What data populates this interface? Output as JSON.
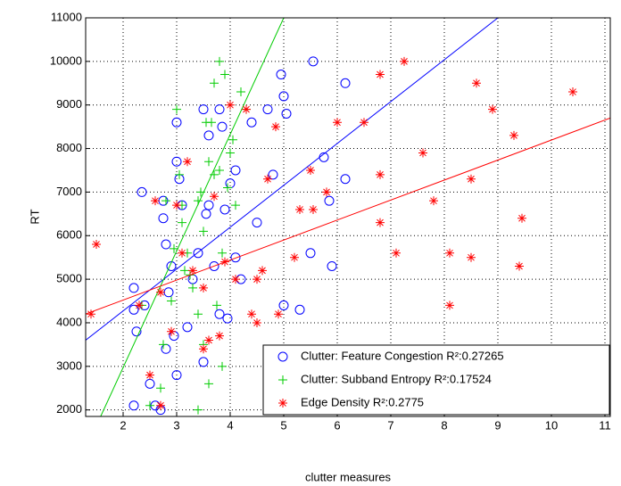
{
  "chart_data": {
    "type": "scatter",
    "xlabel": "clutter measures",
    "ylabel": "RT",
    "xlim": [
      1.3,
      11.1
    ],
    "ylim": [
      1850,
      11000
    ],
    "xticks": [
      2,
      3,
      4,
      5,
      6,
      7,
      8,
      9,
      10,
      11
    ],
    "yticks": [
      2000,
      3000,
      4000,
      5000,
      6000,
      7000,
      8000,
      9000,
      10000,
      11000
    ],
    "grid": true,
    "legend": "lower right",
    "series": [
      {
        "name": "Clutter: Feature Congestion R²:0.27265",
        "color": "#0000ff",
        "marker": "circle",
        "x": [
          2.2,
          2.25,
          2.2,
          2.35,
          2.4,
          2.5,
          2.6,
          2.7,
          2.75,
          2.8,
          2.75,
          2.8,
          2.85,
          2.9,
          2.95,
          3.0,
          3.0,
          3.05,
          3.0,
          3.1,
          3.2,
          3.3,
          3.4,
          3.5,
          3.5,
          3.55,
          3.6,
          3.6,
          3.7,
          3.8,
          3.85,
          3.8,
          3.9,
          3.95,
          4.0,
          4.1,
          4.1,
          4.2,
          4.4,
          4.5,
          4.7,
          4.8,
          4.95,
          5.0,
          5.05,
          5.0,
          5.3,
          5.5,
          5.55,
          5.75,
          5.85,
          5.9,
          6.15,
          6.15,
          2.2
        ],
        "values": [
          4300,
          3800,
          4800,
          7000,
          4400,
          2600,
          2100,
          2000,
          6800,
          5800,
          6400,
          3400,
          4700,
          5300,
          3700,
          8600,
          7700,
          7300,
          2800,
          6700,
          3900,
          5000,
          5600,
          8900,
          3100,
          6500,
          8300,
          6700,
          5300,
          8900,
          8500,
          4200,
          6600,
          4100,
          7200,
          7500,
          5500,
          5000,
          8600,
          6300,
          8900,
          7400,
          9700,
          9200,
          8800,
          4400,
          4300,
          5600,
          10000,
          7800,
          6800,
          5300,
          9500,
          7300,
          2100
        ],
        "fit": {
          "x": [
            1.3,
            9.0
          ],
          "y": [
            3600,
            11000
          ]
        }
      },
      {
        "name": "Clutter: Subband Entropy R²:0.17524",
        "color": "#00cc00",
        "marker": "plus",
        "x": [
          2.35,
          2.5,
          2.7,
          2.75,
          2.8,
          2.9,
          2.95,
          3.0,
          3.05,
          3.1,
          3.1,
          3.15,
          3.2,
          3.25,
          3.3,
          3.4,
          3.4,
          3.45,
          3.5,
          3.5,
          3.55,
          3.6,
          3.6,
          3.65,
          3.7,
          3.75,
          3.8,
          3.8,
          3.85,
          3.85,
          3.9,
          3.95,
          4.0,
          4.05,
          4.1,
          4.2,
          4.3,
          3.7,
          3.4
        ],
        "values": [
          4400,
          2100,
          2500,
          3500,
          6800,
          4500,
          5700,
          8900,
          7400,
          6300,
          6700,
          5200,
          5600,
          5100,
          4800,
          2000,
          6800,
          7000,
          6100,
          3500,
          8600,
          2600,
          7700,
          8600,
          9500,
          4400,
          10000,
          7500,
          5600,
          3000,
          9700,
          7100,
          7900,
          8200,
          6700,
          9300,
          8900,
          7400,
          4200
        ],
        "fit": {
          "x": [
            1.58,
            5.0
          ],
          "y": [
            1850,
            11000
          ]
        }
      },
      {
        "name": "Edge Density R²:0.2775",
        "color": "#ff0000",
        "marker": "star",
        "x": [
          1.4,
          1.5,
          2.3,
          2.5,
          2.6,
          2.7,
          2.7,
          2.9,
          3.0,
          3.1,
          3.2,
          3.3,
          3.5,
          3.5,
          3.6,
          3.7,
          3.8,
          3.9,
          4.0,
          4.1,
          4.3,
          4.4,
          4.5,
          4.5,
          4.6,
          4.7,
          4.85,
          4.9,
          5.2,
          5.3,
          5.5,
          5.55,
          5.8,
          6.0,
          6.5,
          6.8,
          6.8,
          6.8,
          7.1,
          7.25,
          7.6,
          7.8,
          8.1,
          8.1,
          8.5,
          8.5,
          8.6,
          8.9,
          9.3,
          9.4,
          9.45,
          10.4
        ],
        "values": [
          4200,
          5800,
          4400,
          2800,
          6800,
          2100,
          4700,
          3800,
          6700,
          5600,
          7700,
          5200,
          4800,
          3400,
          3600,
          6900,
          3700,
          5400,
          9000,
          5000,
          8900,
          4200,
          5000,
          4000,
          5200,
          7300,
          8500,
          4200,
          5500,
          6600,
          7500,
          6600,
          7000,
          8600,
          8600,
          9700,
          7400,
          6300,
          5600,
          10000,
          7900,
          6800,
          5600,
          4400,
          7300,
          5500,
          9500,
          8900,
          8300,
          5300,
          6400,
          9300
        ],
        "fit": {
          "x": [
            1.3,
            11.1
          ],
          "y": [
            4200,
            8700
          ]
        }
      }
    ]
  }
}
